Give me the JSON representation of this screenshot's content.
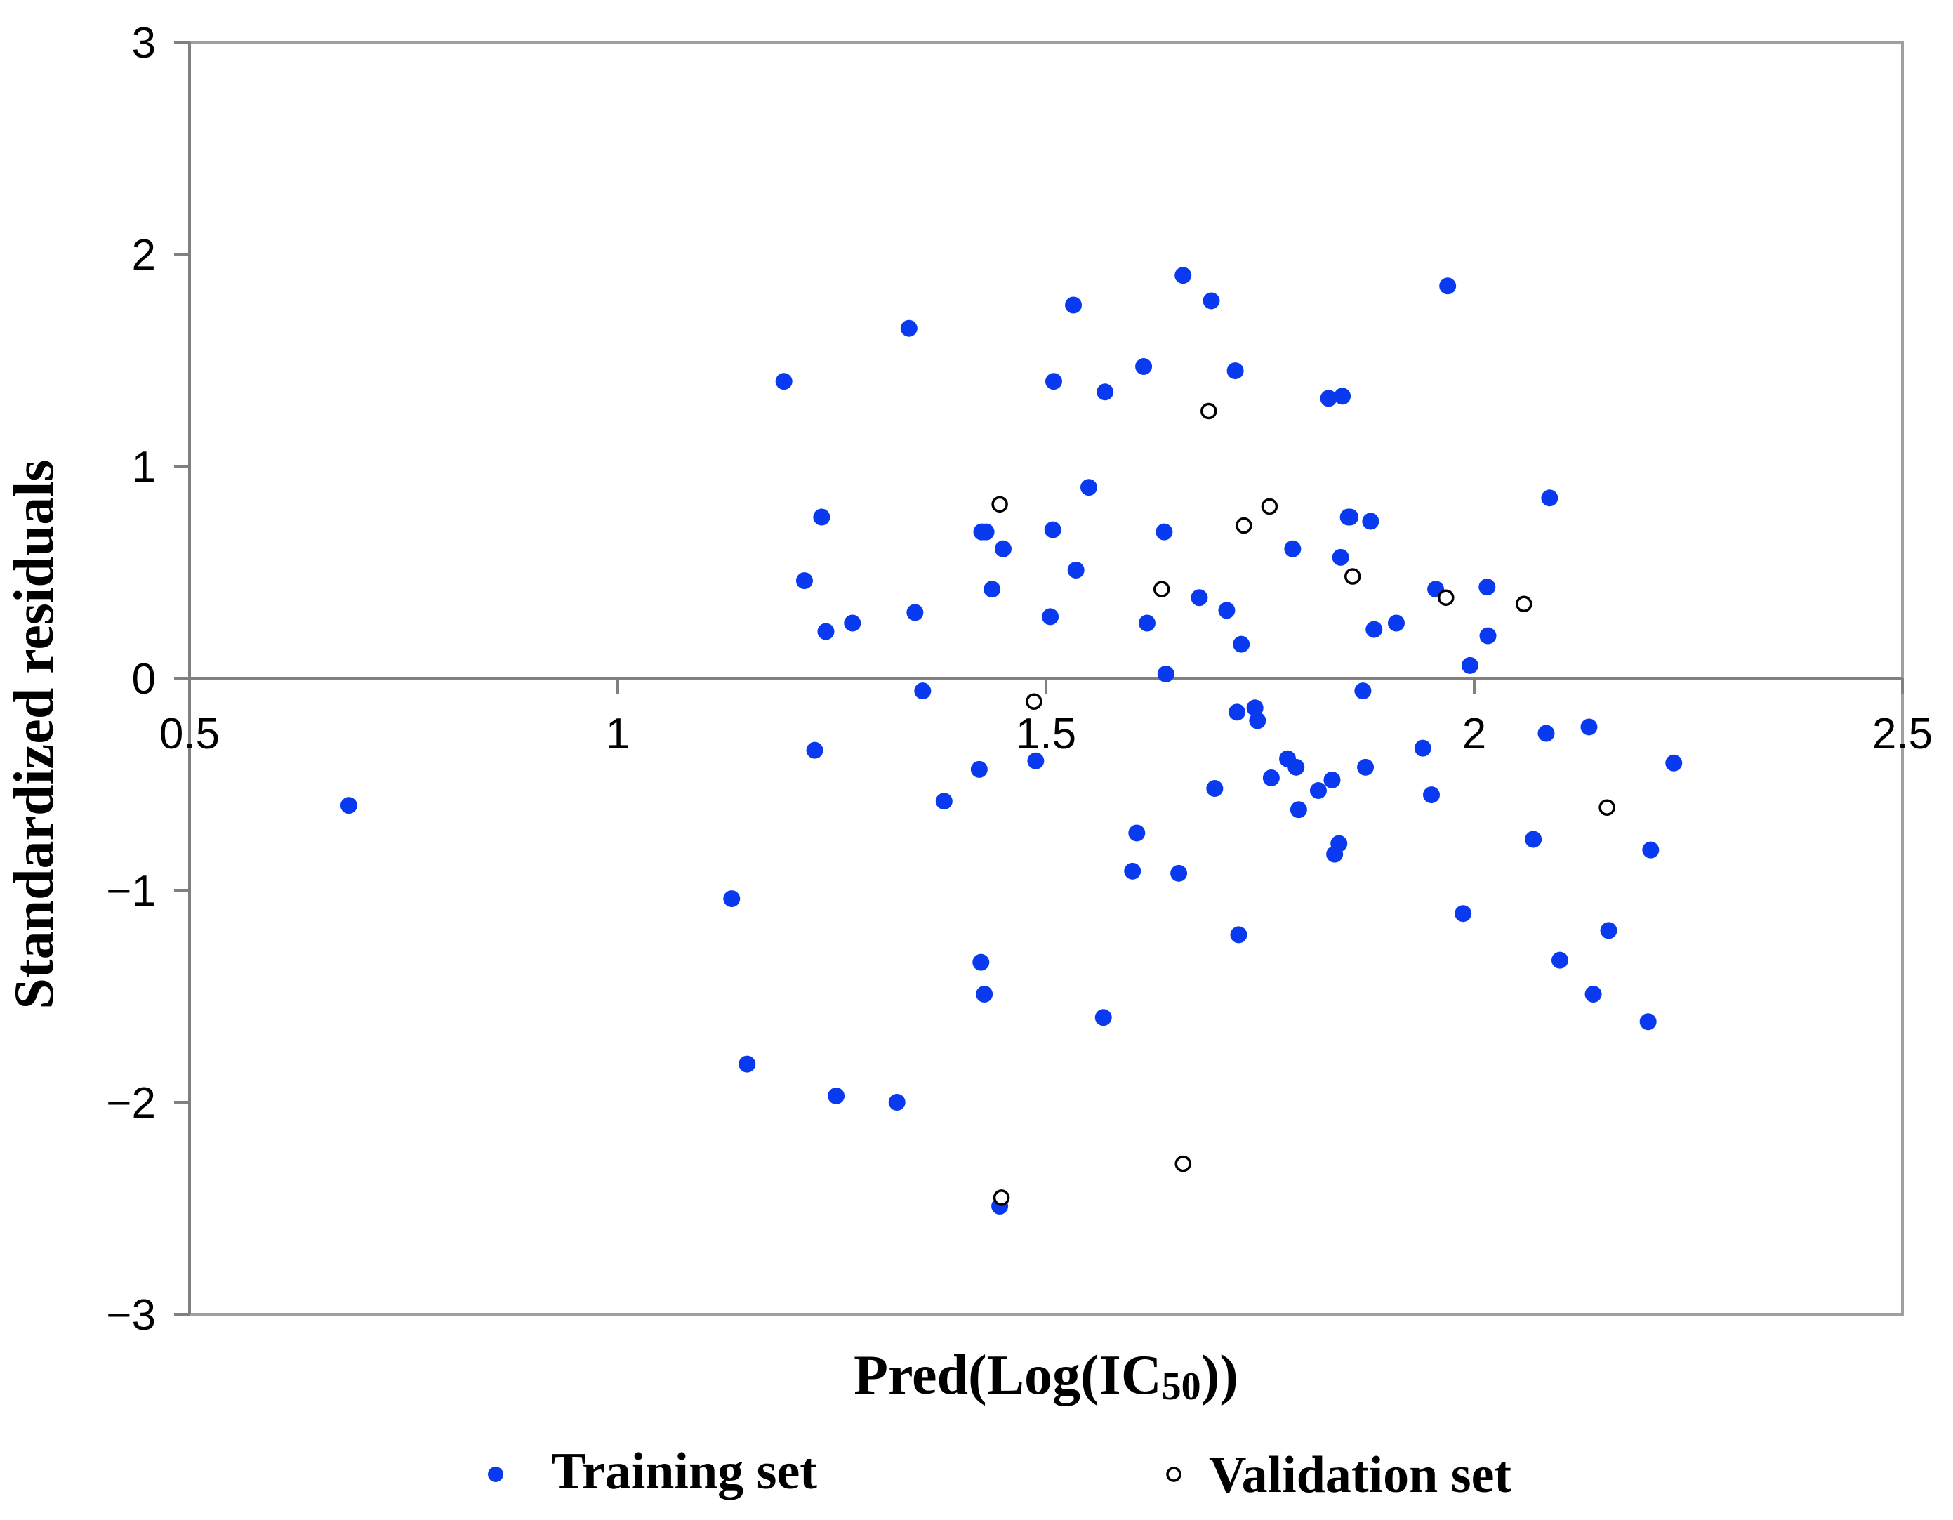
{
  "chart_data": {
    "type": "scatter",
    "title": "",
    "xlabel": "Pred(Log(IC",
    "xlabel_subscript": "50",
    "xlabel_suffix": "))",
    "ylabel": "Standardized residuals",
    "xlim": [
      0.5,
      2.5
    ],
    "ylim": [
      -3,
      3
    ],
    "x_ticks": [
      0.5,
      1,
      1.5,
      2,
      2.5
    ],
    "x_tick_labels": [
      "0.5",
      "1",
      "1.5",
      "2",
      "2.5"
    ],
    "y_ticks": [
      -3,
      -2,
      -1,
      0,
      1,
      2,
      3
    ],
    "y_tick_labels": [
      "−3",
      "−2",
      "−1",
      "0",
      "1",
      "2",
      "3"
    ],
    "grid": false,
    "legend_position": "bottom",
    "colors": {
      "training": "#0a3af0",
      "validation_stroke": "#000000",
      "axis": "#808080"
    },
    "series": [
      {
        "name": "Training set",
        "marker": "filled-circle",
        "x": [
          0.686,
          1.133,
          1.151,
          1.194,
          1.218,
          1.23,
          1.238,
          1.243,
          1.255,
          1.274,
          1.326,
          1.34,
          1.347,
          1.356,
          1.381,
          1.422,
          1.424,
          1.425,
          1.428,
          1.43,
          1.437,
          1.446,
          1.45,
          1.488,
          1.505,
          1.508,
          1.509,
          1.532,
          1.535,
          1.55,
          1.567,
          1.569,
          1.601,
          1.606,
          1.614,
          1.618,
          1.638,
          1.64,
          1.655,
          1.66,
          1.679,
          1.693,
          1.697,
          1.711,
          1.721,
          1.723,
          1.725,
          1.728,
          1.744,
          1.747,
          1.763,
          1.782,
          1.788,
          1.792,
          1.795,
          1.818,
          1.83,
          1.834,
          1.837,
          1.842,
          1.844,
          1.846,
          1.853,
          1.855,
          1.87,
          1.873,
          1.879,
          1.883,
          1.909,
          1.94,
          1.95,
          1.955,
          1.969,
          1.987,
          1.995,
          2.015,
          2.016,
          2.069,
          2.084,
          2.088,
          2.1,
          2.134,
          2.139,
          2.157,
          2.203,
          2.206,
          2.233
        ],
        "y": [
          -0.6,
          -1.04,
          -1.82,
          1.4,
          0.46,
          -0.34,
          0.76,
          0.22,
          -1.97,
          0.26,
          -2.0,
          1.65,
          0.31,
          -0.06,
          -0.58,
          -0.43,
          -1.34,
          0.69,
          -1.49,
          0.69,
          0.42,
          -2.49,
          0.61,
          -0.39,
          0.29,
          0.7,
          1.4,
          1.76,
          0.51,
          0.9,
          -1.6,
          1.35,
          -0.91,
          -0.73,
          1.47,
          0.26,
          0.69,
          0.02,
          -0.92,
          1.9,
          0.38,
          1.78,
          -0.52,
          0.32,
          1.45,
          -0.16,
          -1.21,
          0.16,
          -0.14,
          -0.2,
          -0.47,
          -0.38,
          0.61,
          -0.42,
          -0.62,
          -0.53,
          1.32,
          -0.48,
          -0.83,
          -0.78,
          0.57,
          1.33,
          0.76,
          0.76,
          -0.06,
          -0.42,
          0.74,
          0.23,
          0.26,
          -0.33,
          -0.55,
          0.42,
          1.85,
          -1.11,
          0.06,
          0.43,
          0.2,
          -0.76,
          -0.26,
          0.85,
          -1.33,
          -0.23,
          -1.49,
          -1.19,
          -1.62,
          -0.81,
          -0.4
        ],
        "x_raw_note": ""
      },
      {
        "name": "Validation set",
        "marker": "open-circle",
        "x": [
          1.446,
          1.448,
          1.486,
          1.635,
          1.66,
          1.69,
          1.731,
          1.761,
          1.858,
          1.967,
          2.058,
          2.155
        ],
        "y": [
          0.82,
          -2.45,
          -0.11,
          0.42,
          -2.29,
          1.26,
          0.72,
          0.81,
          0.48,
          0.38,
          0.35,
          -0.61
        ]
      }
    ]
  }
}
